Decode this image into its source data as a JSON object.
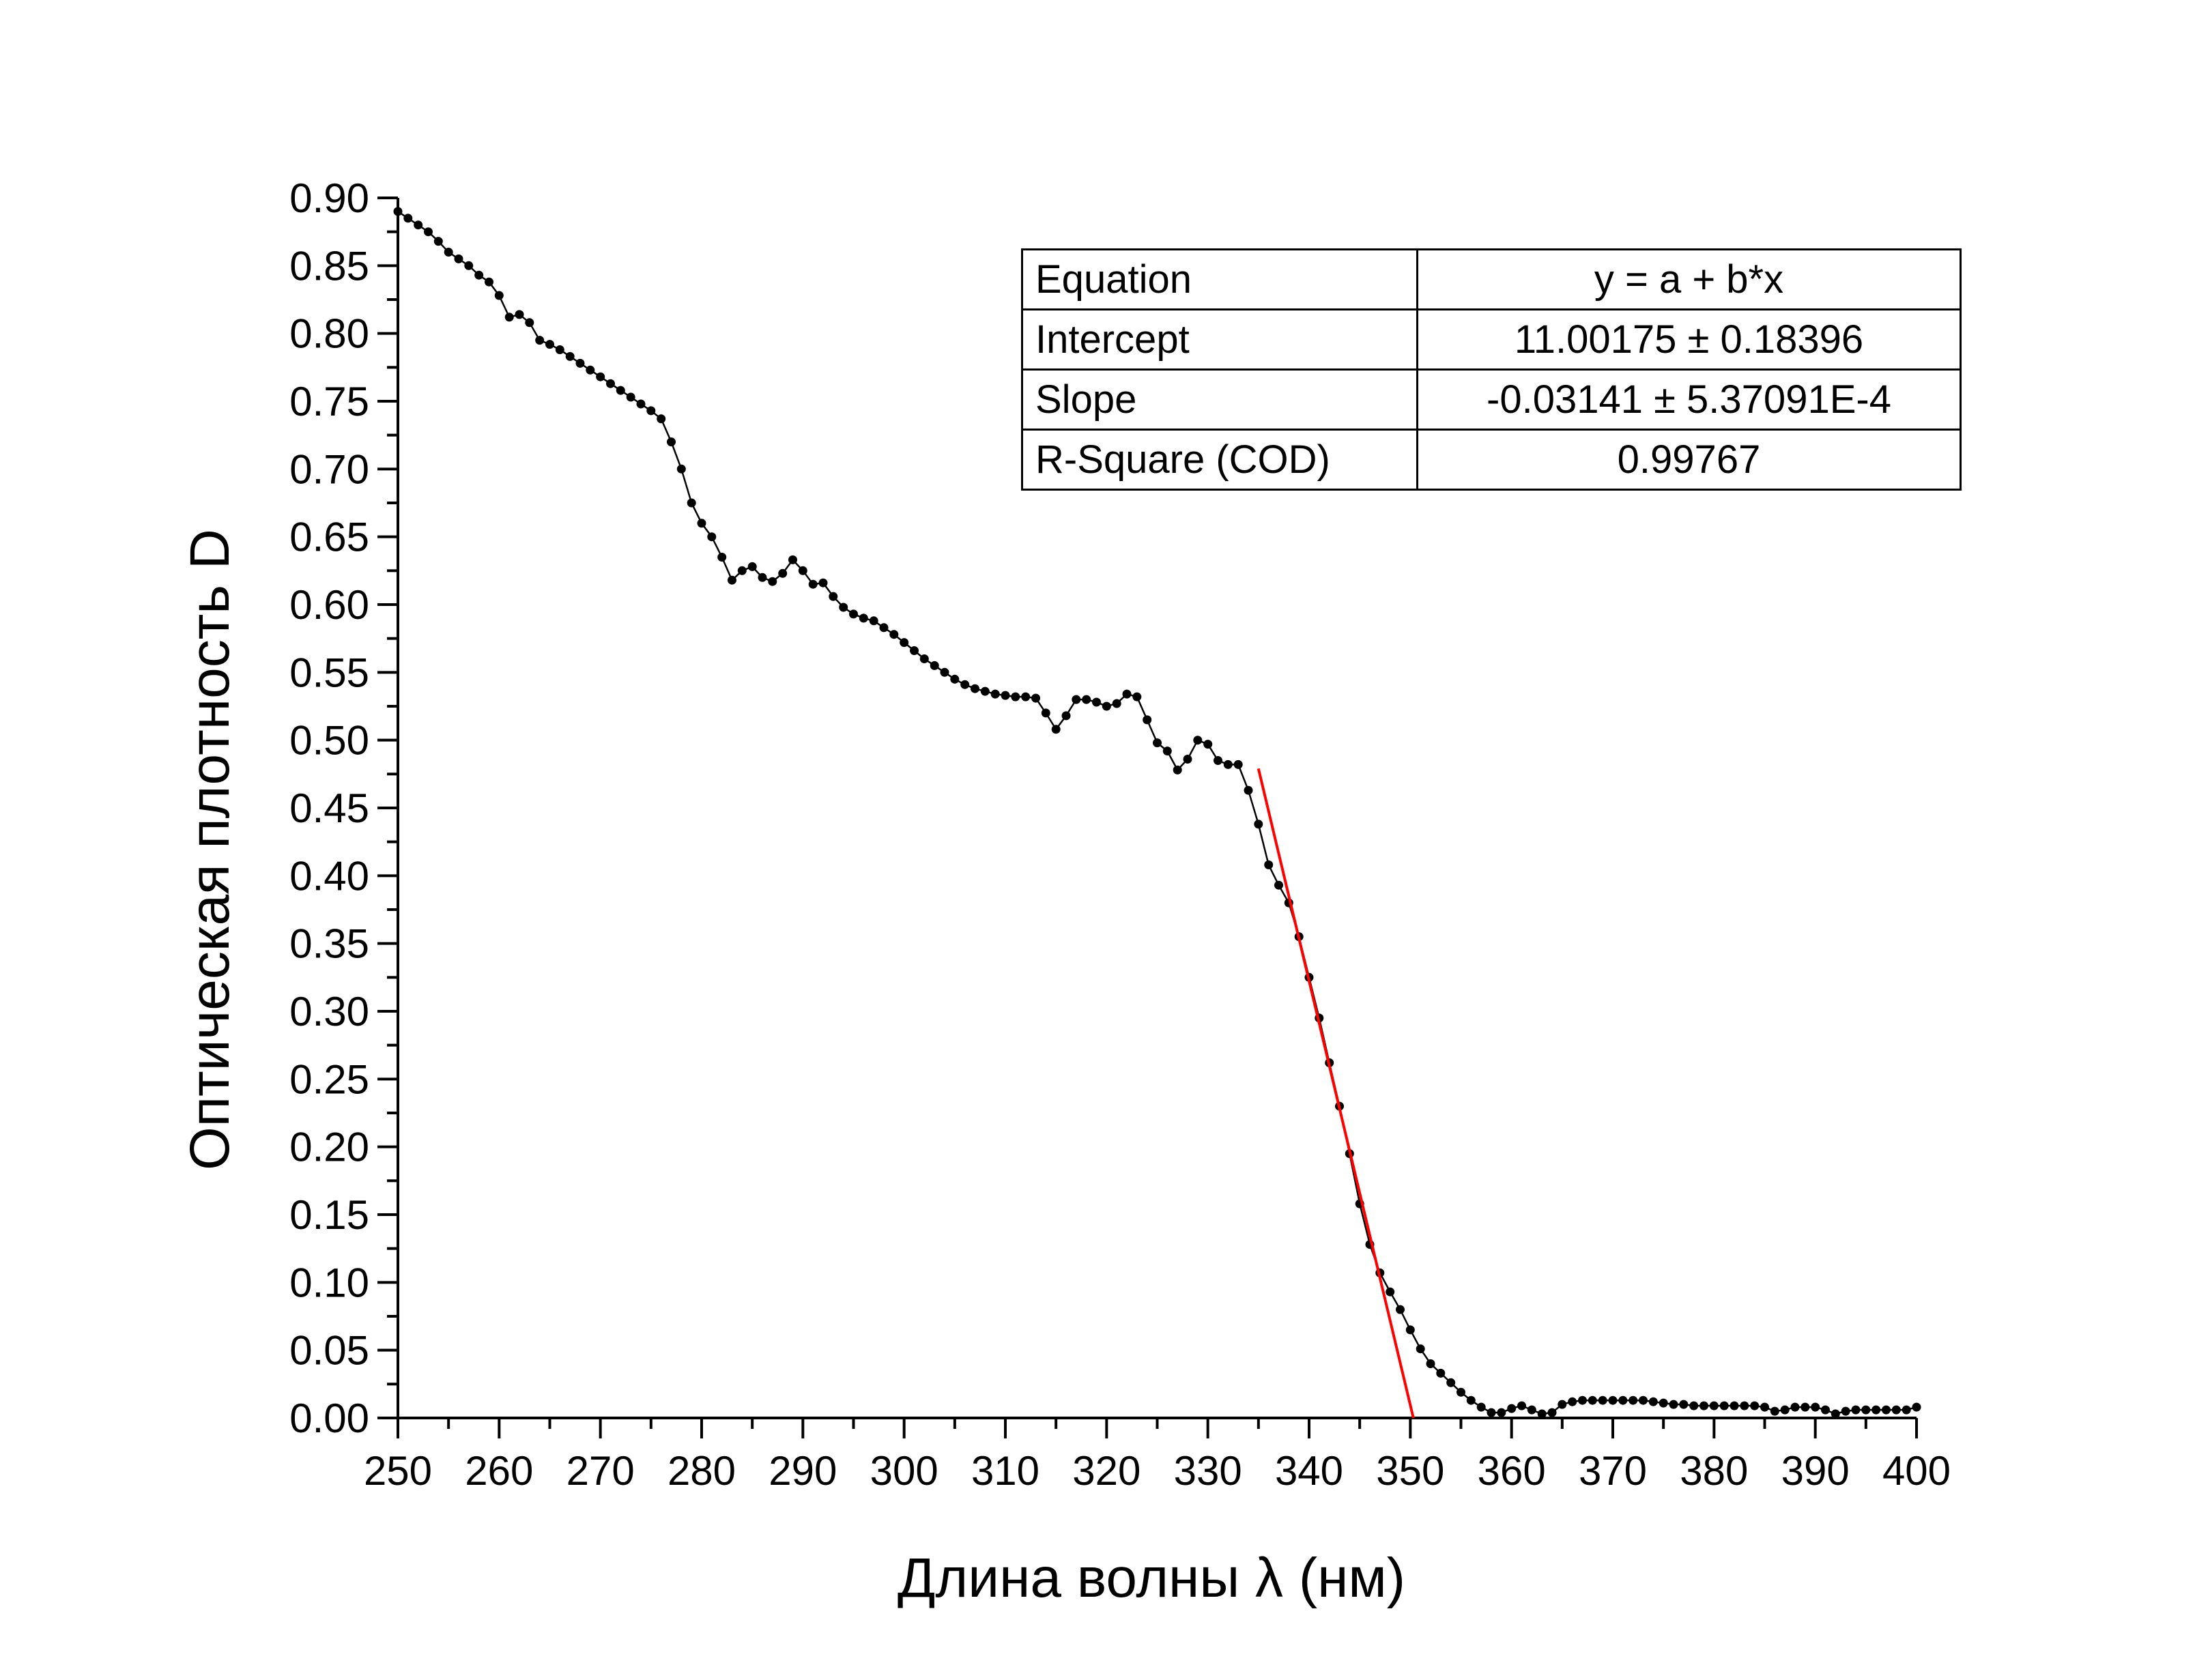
{
  "chart_data": {
    "type": "scatter",
    "title": "",
    "xlabel": "Длина волны λ (нм)",
    "ylabel": "Оптическая плотность D",
    "xlim": [
      250,
      400
    ],
    "ylim": [
      0,
      0.9
    ],
    "x_ticks": [
      "250",
      "260",
      "270",
      "280",
      "290",
      "300",
      "310",
      "320",
      "330",
      "340",
      "350",
      "360",
      "370",
      "380",
      "390",
      "400"
    ],
    "y_ticks": [
      "0.00",
      "0.05",
      "0.10",
      "0.15",
      "0.20",
      "0.25",
      "0.30",
      "0.35",
      "0.40",
      "0.45",
      "0.50",
      "0.55",
      "0.60",
      "0.65",
      "0.70",
      "0.75",
      "0.80",
      "0.85",
      "0.90"
    ],
    "grid": false,
    "series": [
      {
        "color": "#000000",
        "style": "line+markers",
        "x": [
          250,
          251,
          252,
          253,
          254,
          255,
          256,
          257,
          258,
          259,
          260,
          261,
          262,
          263,
          264,
          265,
          266,
          267,
          268,
          269,
          270,
          271,
          272,
          273,
          274,
          275,
          276,
          277,
          278,
          279,
          280,
          281,
          282,
          283,
          284,
          285,
          286,
          287,
          288,
          289,
          290,
          291,
          292,
          293,
          294,
          295,
          296,
          297,
          298,
          299,
          300,
          301,
          302,
          303,
          304,
          305,
          306,
          307,
          308,
          309,
          310,
          311,
          312,
          313,
          314,
          315,
          316,
          317,
          318,
          319,
          320,
          321,
          322,
          323,
          324,
          325,
          326,
          327,
          328,
          329,
          330,
          331,
          332,
          333,
          334,
          335,
          336,
          337,
          338,
          339,
          340,
          341,
          342,
          343,
          344,
          345,
          346,
          347,
          348,
          349,
          350,
          351,
          352,
          353,
          354,
          355,
          356,
          357,
          358,
          359,
          360,
          361,
          362,
          363,
          364,
          365,
          366,
          367,
          368,
          369,
          370,
          371,
          372,
          373,
          374,
          375,
          376,
          377,
          378,
          379,
          380,
          381,
          382,
          383,
          384,
          385,
          386,
          387,
          388,
          389,
          390,
          391,
          392,
          393,
          394,
          395,
          396,
          397,
          398,
          399,
          400
        ],
        "y": [
          0.89,
          0.885,
          0.88,
          0.875,
          0.868,
          0.86,
          0.855,
          0.85,
          0.843,
          0.838,
          0.828,
          0.812,
          0.814,
          0.808,
          0.795,
          0.792,
          0.788,
          0.783,
          0.778,
          0.773,
          0.768,
          0.763,
          0.758,
          0.753,
          0.748,
          0.743,
          0.737,
          0.72,
          0.7,
          0.675,
          0.66,
          0.65,
          0.635,
          0.618,
          0.625,
          0.628,
          0.62,
          0.617,
          0.623,
          0.633,
          0.625,
          0.615,
          0.616,
          0.606,
          0.598,
          0.593,
          0.59,
          0.588,
          0.583,
          0.578,
          0.572,
          0.566,
          0.56,
          0.555,
          0.55,
          0.545,
          0.541,
          0.538,
          0.536,
          0.534,
          0.533,
          0.532,
          0.532,
          0.531,
          0.52,
          0.508,
          0.518,
          0.53,
          0.53,
          0.528,
          0.525,
          0.527,
          0.534,
          0.532,
          0.515,
          0.498,
          0.492,
          0.478,
          0.486,
          0.5,
          0.497,
          0.485,
          0.482,
          0.482,
          0.463,
          0.438,
          0.408,
          0.393,
          0.38,
          0.355,
          0.325,
          0.295,
          0.262,
          0.23,
          0.195,
          0.158,
          0.128,
          0.107,
          0.093,
          0.08,
          0.065,
          0.051,
          0.04,
          0.033,
          0.026,
          0.019,
          0.013,
          0.008,
          0.004,
          0.004,
          0.007,
          0.009,
          0.006,
          0.003,
          0.004,
          0.01,
          0.012,
          0.013,
          0.013,
          0.013,
          0.013,
          0.013,
          0.013,
          0.013,
          0.012,
          0.011,
          0.01,
          0.01,
          0.009,
          0.009,
          0.009,
          0.009,
          0.009,
          0.009,
          0.009,
          0.008,
          0.005,
          0.006,
          0.008,
          0.008,
          0.008,
          0.006,
          0.003,
          0.005,
          0.006,
          0.006,
          0.006,
          0.006,
          0.006,
          0.006,
          0.008
        ]
      },
      {
        "color": "#ff0000",
        "style": "line",
        "x": [
          335,
          350.3
        ],
        "y": [
          0.479,
          0
        ]
      }
    ],
    "fit_table": {
      "rows": [
        {
          "key": "Equation",
          "value": "y = a + b*x"
        },
        {
          "key": "Intercept",
          "value": "11.00175 ± 0.18396"
        },
        {
          "key": "Slope",
          "value": "-0.03141 ± 5.37091E-4"
        },
        {
          "key": "R-Square (COD)",
          "value": "0.99767"
        }
      ]
    }
  }
}
